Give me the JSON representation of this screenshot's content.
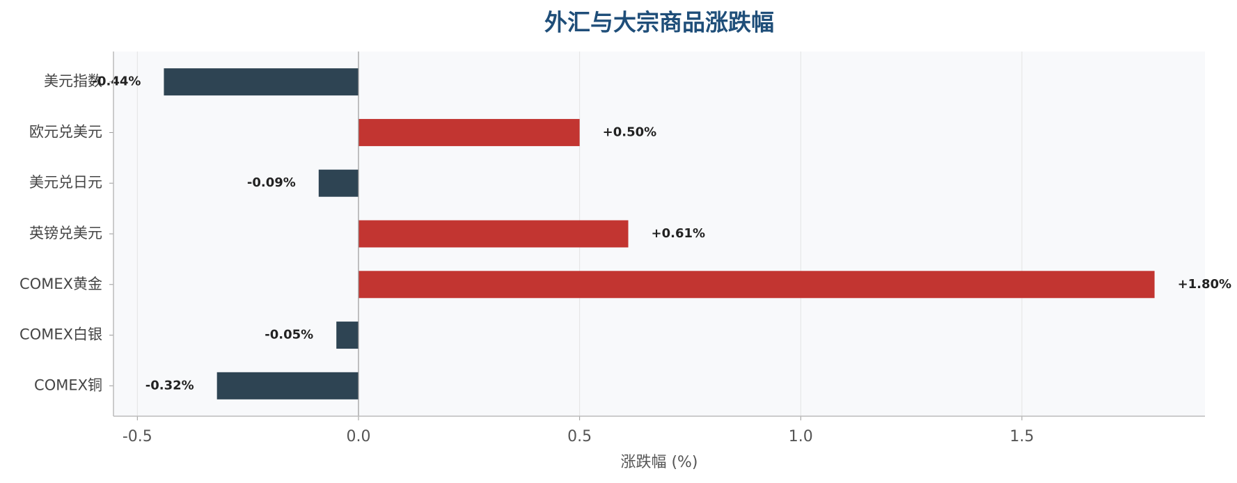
{
  "chart_data": {
    "type": "barh",
    "title": "外汇与大宗商品涨跌幅",
    "xlabel": "涨跌幅 (%)",
    "categories": [
      "美元指数",
      "欧元兑美元",
      "美元兑日元",
      "英镑兑美元",
      "COMEX黄金",
      "COMEX白银",
      "COMEX铜"
    ],
    "values": [
      -0.44,
      0.5,
      -0.09,
      0.61,
      1.8,
      -0.05,
      -0.32
    ],
    "value_labels": [
      "-0.44%",
      "+0.50%",
      "-0.09%",
      "+0.61%",
      "+1.80%",
      "-0.05%",
      "-0.32%"
    ],
    "colors": [
      "#2e4453",
      "#c23531",
      "#2e4453",
      "#c23531",
      "#c23531",
      "#2e4453",
      "#2e4453"
    ],
    "xlim": [
      -0.554,
      1.914
    ],
    "xticks": [
      -0.5,
      {
        "value": 0,
        "label": "0.0"
      },
      0.5,
      {
        "value": 1,
        "label": "1.0"
      },
      1.5
    ],
    "grid": true
  }
}
